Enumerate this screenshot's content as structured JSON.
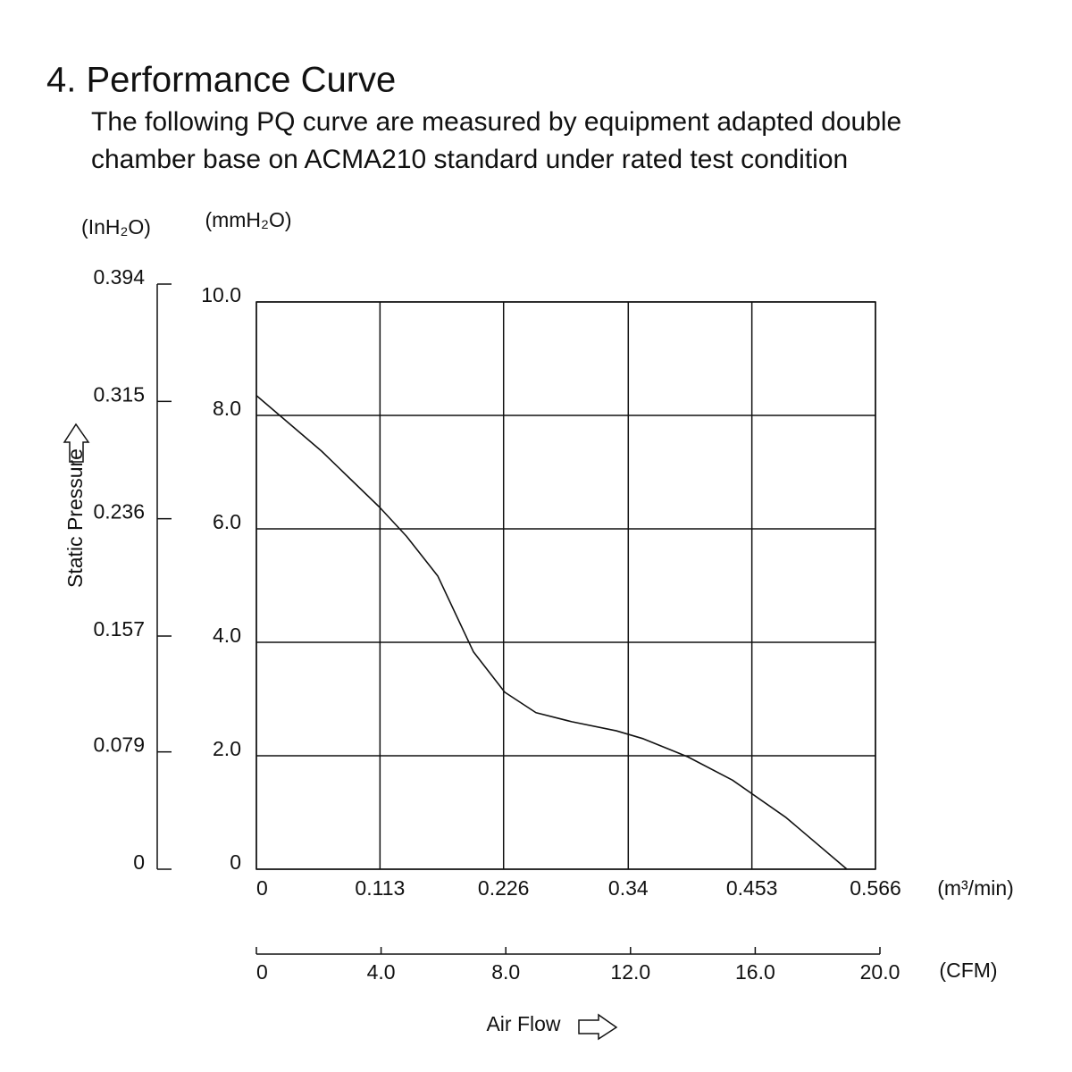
{
  "heading": "4. Performance Curve",
  "description": [
    "The following PQ curve are measured by equipment adapted double",
    "chamber base on ACMA210 standard under rated test condition"
  ],
  "chart_data": {
    "type": "line",
    "x": [
      0,
      0.0596,
      0.1127,
      0.1372,
      0.1658,
      0.1985,
      0.2271,
      0.2556,
      0.2883,
      0.3291,
      0.3537,
      0.3945,
      0.4353,
      0.4843,
      0.5399
    ],
    "series": [
      {
        "color": "#111111",
        "values": [
          8.35,
          7.37,
          6.38,
          5.87,
          5.17,
          3.83,
          3.12,
          2.76,
          2.6,
          2.44,
          2.3,
          1.98,
          1.57,
          0.91,
          0
        ]
      }
    ],
    "xlim": [
      0,
      0.566
    ],
    "xticks": [
      0,
      0.113,
      0.226,
      0.34,
      0.453,
      0.566
    ],
    "x2lim": [
      0,
      20
    ],
    "x2ticks": [
      0,
      {
        "value": 4,
        "label": "4.0"
      },
      {
        "value": 8,
        "label": "8.0"
      },
      {
        "value": 12,
        "label": "12.0"
      },
      {
        "value": 16,
        "label": "16.0"
      },
      {
        "value": 20,
        "label": "20.0"
      }
    ],
    "ylim": [
      0,
      10
    ],
    "yticks": [
      0,
      {
        "value": 2,
        "label": "2.0"
      },
      {
        "value": 4,
        "label": "4.0"
      },
      {
        "value": 6,
        "label": "6.0"
      },
      {
        "value": 8,
        "label": "8.0"
      },
      {
        "value": 10,
        "label": "10.0"
      }
    ],
    "y2lim": [
      0,
      0.394
    ],
    "y2ticks": [
      0,
      0.079,
      0.157,
      0.236,
      0.315,
      0.394
    ],
    "x_unit": "(m³/min)",
    "x2_unit": "(CFM)",
    "y_unit": "(mmH₂O)",
    "y2_unit": "(InH₂O)",
    "xlabel": "Air Flow",
    "ylabel": "Static Pressure",
    "grid": true
  }
}
